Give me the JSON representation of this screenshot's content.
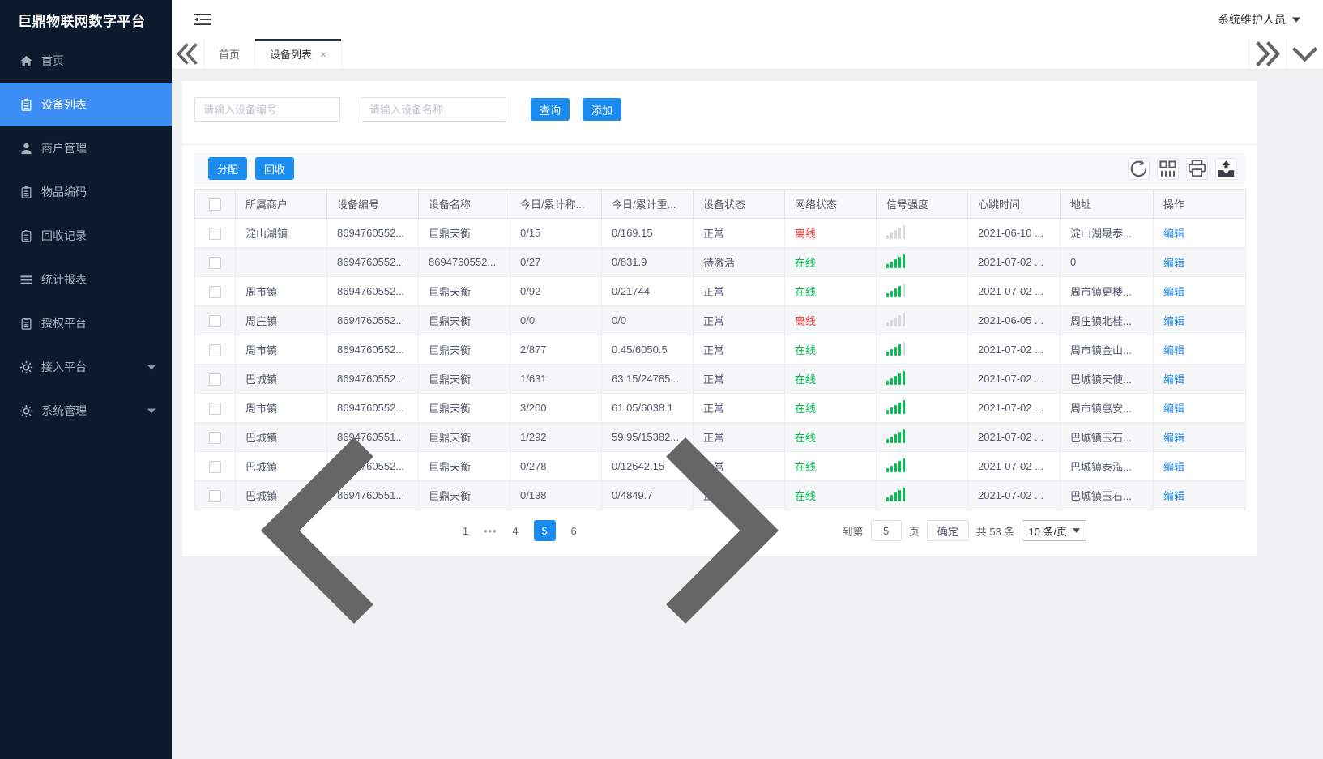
{
  "app": {
    "title": "巨鼎物联网数字平台",
    "user": "系统维护人员"
  },
  "colors": {
    "primary": "#1a8cf0",
    "sidebar_active": "#3e8ef7",
    "green": "#00c14e",
    "red": "#f22c2c"
  },
  "sidebar": {
    "items": [
      {
        "label": "首页",
        "icon": "home-icon",
        "active": false,
        "expandable": false
      },
      {
        "label": "设备列表",
        "icon": "clipboard-icon",
        "active": true,
        "expandable": false
      },
      {
        "label": "商户管理",
        "icon": "user-icon",
        "active": false,
        "expandable": false
      },
      {
        "label": "物品编码",
        "icon": "clipboard-icon",
        "active": false,
        "expandable": false
      },
      {
        "label": "回收记录",
        "icon": "clipboard-icon",
        "active": false,
        "expandable": false
      },
      {
        "label": "统计报表",
        "icon": "list-icon",
        "active": false,
        "expandable": false
      },
      {
        "label": "授权平台",
        "icon": "clipboard-icon",
        "active": false,
        "expandable": false
      },
      {
        "label": "接入平台",
        "icon": "gear-icon",
        "active": false,
        "expandable": true
      },
      {
        "label": "系统管理",
        "icon": "gear-icon",
        "active": false,
        "expandable": true
      }
    ]
  },
  "tabs": {
    "items": [
      {
        "label": "首页",
        "active": false,
        "closable": false
      },
      {
        "label": "设备列表",
        "active": true,
        "closable": true
      }
    ]
  },
  "filters": {
    "device_no_placeholder": "请输入设备编号",
    "device_name_placeholder": "请输入设备名称",
    "search_label": "查询",
    "add_label": "添加"
  },
  "toolbar": {
    "assign_label": "分配",
    "recycle_label": "回收",
    "icons": [
      "refresh-icon",
      "columns-icon",
      "print-icon",
      "export-icon"
    ]
  },
  "table": {
    "columns": [
      {
        "key": "check",
        "label": ""
      },
      {
        "key": "merchant",
        "label": "所属商户"
      },
      {
        "key": "device_no",
        "label": "设备编号"
      },
      {
        "key": "device_name",
        "label": "设备名称"
      },
      {
        "key": "today_count",
        "label": "今日/累计称..."
      },
      {
        "key": "today_weight",
        "label": "今日/累计重..."
      },
      {
        "key": "device_status",
        "label": "设备状态"
      },
      {
        "key": "network_status",
        "label": "网络状态"
      },
      {
        "key": "signal",
        "label": "信号强度"
      },
      {
        "key": "heartbeat",
        "label": "心跳时间"
      },
      {
        "key": "address",
        "label": "地址"
      },
      {
        "key": "action",
        "label": "操作"
      }
    ],
    "rows": [
      {
        "merchant": "淀山湖镇",
        "device_no": "8694760552...",
        "device_name": "巨鼎天衡",
        "today_count": "0/15",
        "today_weight": "0/169.15",
        "device_status": "正常",
        "network_status": "离线",
        "online": false,
        "signal_level": 0,
        "heartbeat": "2021-06-10 ...",
        "address": "淀山湖晟泰...",
        "action": "编辑"
      },
      {
        "merchant": "",
        "device_no": "8694760552...",
        "device_name": "8694760552...",
        "today_count": "0/27",
        "today_weight": "0/831.9",
        "device_status": "待激活",
        "network_status": "在线",
        "online": true,
        "signal_level": 5,
        "heartbeat": "2021-07-02 ...",
        "address": "0",
        "action": "编辑"
      },
      {
        "merchant": "周市镇",
        "device_no": "8694760552...",
        "device_name": "巨鼎天衡",
        "today_count": "0/92",
        "today_weight": "0/21744",
        "device_status": "正常",
        "network_status": "在线",
        "online": true,
        "signal_level": 4,
        "heartbeat": "2021-07-02 ...",
        "address": "周市镇更楼...",
        "action": "编辑"
      },
      {
        "merchant": "周庄镇",
        "device_no": "8694760552...",
        "device_name": "巨鼎天衡",
        "today_count": "0/0",
        "today_weight": "0/0",
        "device_status": "正常",
        "network_status": "离线",
        "online": false,
        "signal_level": 0,
        "heartbeat": "2021-06-05 ...",
        "address": "周庄镇北桂...",
        "action": "编辑"
      },
      {
        "merchant": "周市镇",
        "device_no": "8694760552...",
        "device_name": "巨鼎天衡",
        "today_count": "2/877",
        "today_weight": "0.45/6050.5",
        "device_status": "正常",
        "network_status": "在线",
        "online": true,
        "signal_level": 4,
        "heartbeat": "2021-07-02 ...",
        "address": "周市镇金山...",
        "action": "编辑"
      },
      {
        "merchant": "巴城镇",
        "device_no": "8694760552...",
        "device_name": "巨鼎天衡",
        "today_count": "1/631",
        "today_weight": "63.15/24785...",
        "device_status": "正常",
        "network_status": "在线",
        "online": true,
        "signal_level": 5,
        "heartbeat": "2021-07-02 ...",
        "address": "巴城镇天使...",
        "action": "编辑"
      },
      {
        "merchant": "周市镇",
        "device_no": "8694760552...",
        "device_name": "巨鼎天衡",
        "today_count": "3/200",
        "today_weight": "61.05/6038.1",
        "device_status": "正常",
        "network_status": "在线",
        "online": true,
        "signal_level": 5,
        "heartbeat": "2021-07-02 ...",
        "address": "周市镇惠安...",
        "action": "编辑"
      },
      {
        "merchant": "巴城镇",
        "device_no": "8694760551...",
        "device_name": "巨鼎天衡",
        "today_count": "1/292",
        "today_weight": "59.95/15382...",
        "device_status": "正常",
        "network_status": "在线",
        "online": true,
        "signal_level": 5,
        "heartbeat": "2021-07-02 ...",
        "address": "巴城镇玉石...",
        "action": "编辑"
      },
      {
        "merchant": "巴城镇",
        "device_no": "8694760552...",
        "device_name": "巨鼎天衡",
        "today_count": "0/278",
        "today_weight": "0/12642.15",
        "device_status": "正常",
        "network_status": "在线",
        "online": true,
        "signal_level": 5,
        "heartbeat": "2021-07-02 ...",
        "address": "巴城镇泰泓...",
        "action": "编辑"
      },
      {
        "merchant": "巴城镇",
        "device_no": "8694760551...",
        "device_name": "巨鼎天衡",
        "today_count": "0/138",
        "today_weight": "0/4849.7",
        "device_status": "正常",
        "network_status": "在线",
        "online": true,
        "signal_level": 5,
        "heartbeat": "2021-07-02 ...",
        "address": "巴城镇玉石...",
        "action": "编辑"
      }
    ]
  },
  "pagination": {
    "pages": [
      "1",
      "...",
      "4",
      "5",
      "6"
    ],
    "active_page": "5",
    "goto_label": "到第",
    "goto_value": "5",
    "page_unit": "页",
    "confirm_label": "确定",
    "total_label": "共 53 条",
    "page_size_value": "10 条/页"
  }
}
